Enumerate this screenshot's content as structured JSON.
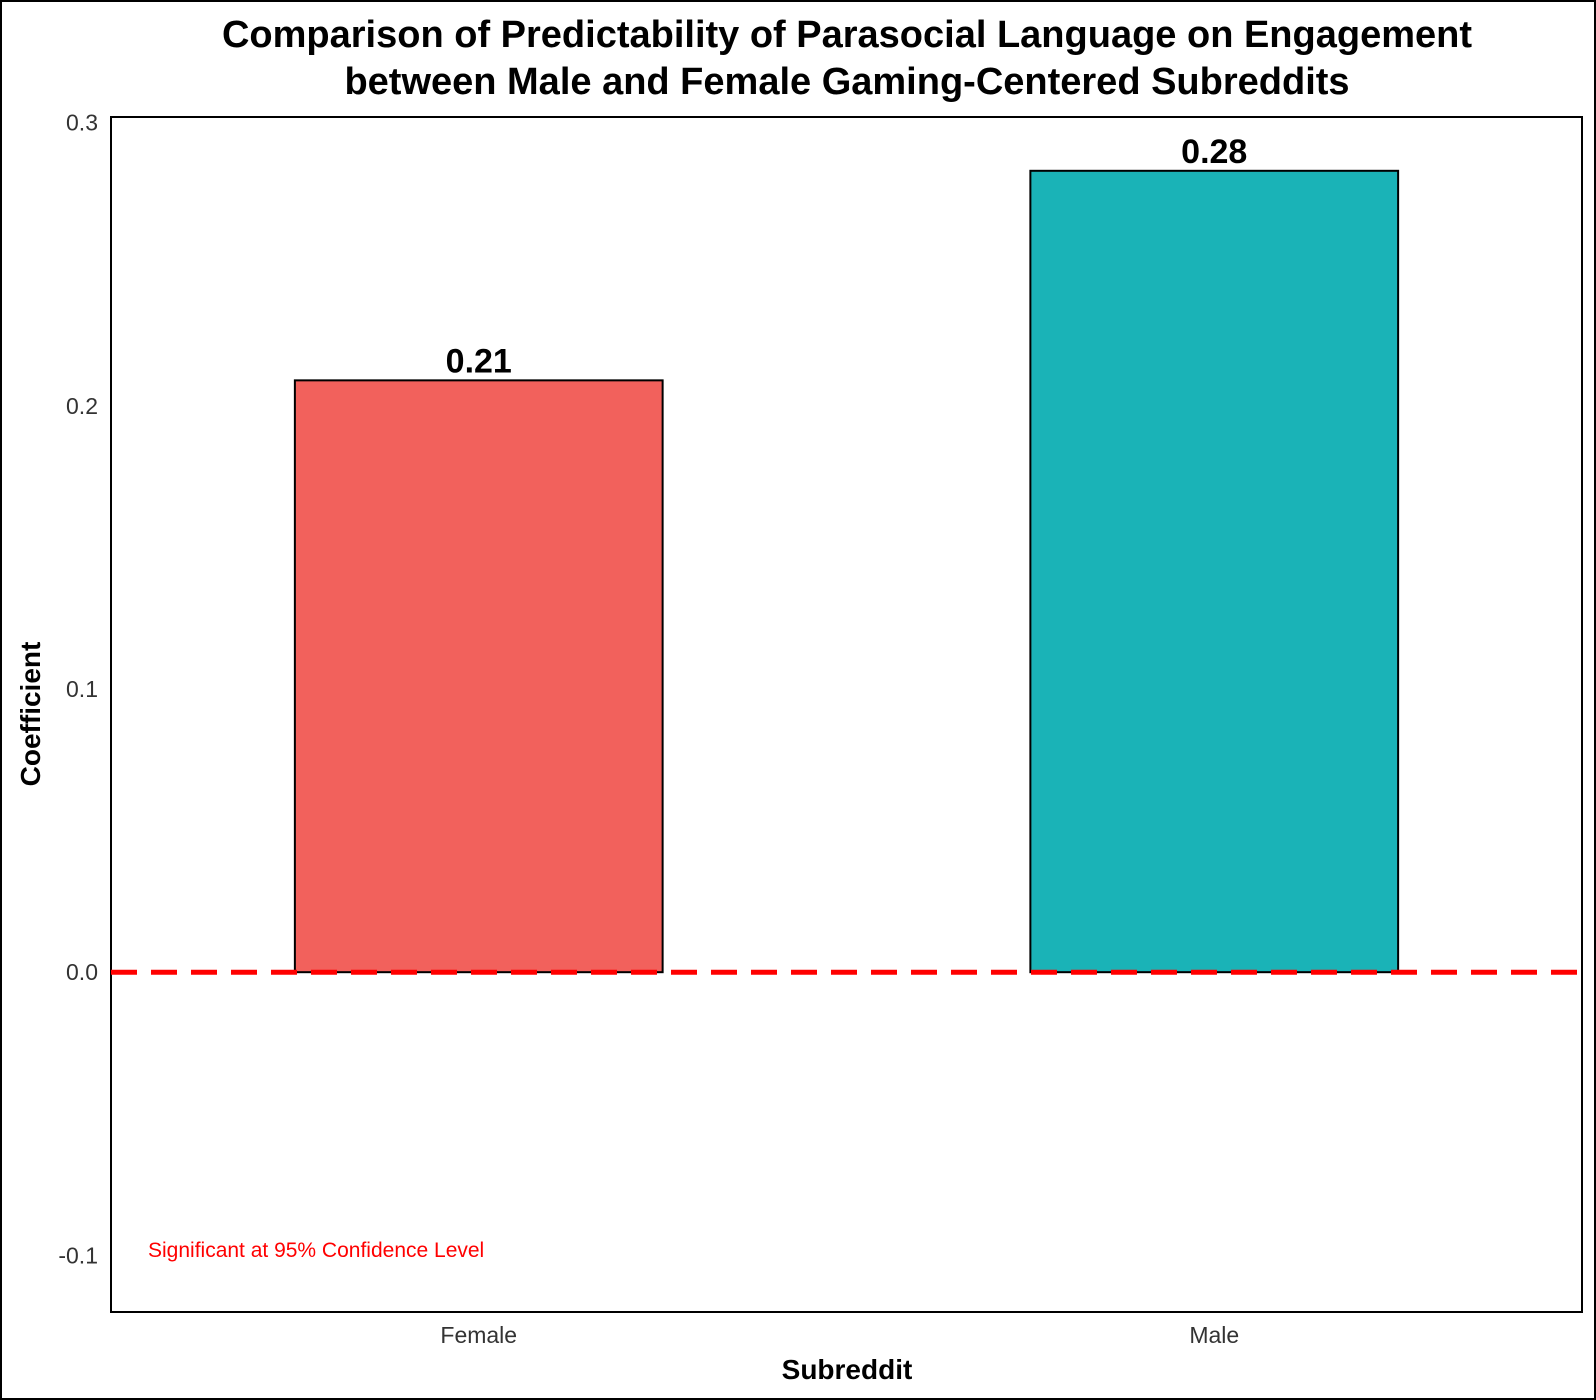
{
  "chart_data": {
    "type": "bar",
    "title_lines": [
      "Comparison of Predictability of Parasocial Language on Engagement",
      "between Male and Female Gaming-Centered Subreddits"
    ],
    "xlabel": "Subreddit",
    "ylabel": "Coefficient",
    "categories": [
      "Female",
      "Male"
    ],
    "values": [
      0.209,
      0.283
    ],
    "value_labels": [
      "0.21",
      "0.28"
    ],
    "colors": [
      "#F2615C",
      "#1AB3B7"
    ],
    "ylim": [
      -0.12,
      0.302
    ],
    "yticks": [
      -0.1,
      0.0,
      0.1,
      0.2,
      0.3
    ],
    "ytick_labels": [
      "-0.1",
      "0.0",
      "0.1",
      "0.2",
      "0.3"
    ],
    "reference_line": {
      "y": 0,
      "color": "#ff0000",
      "style": "dashed"
    },
    "annotation": {
      "text": "Significant at 95% Confidence Level",
      "color": "#ff0000"
    },
    "grid": false,
    "legend": "none"
  }
}
